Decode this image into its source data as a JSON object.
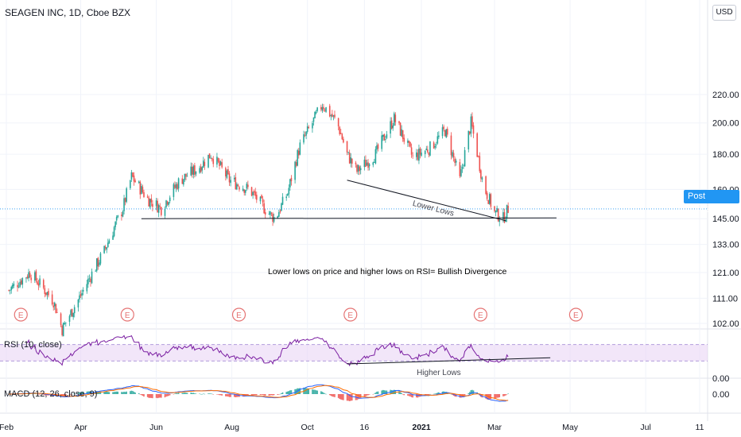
{
  "header": {
    "title": "SEAGEN INC, 1D, Cboe BZX",
    "currency_button": "USD"
  },
  "price_axis": {
    "ticks": [
      "220.00",
      "200.00",
      "180.00",
      "160.00",
      "145.00",
      "133.00",
      "121.00",
      "111.00",
      "102.00"
    ],
    "tick_values": [
      220,
      200,
      180,
      160,
      145,
      133,
      121,
      111,
      102
    ],
    "scale": "log"
  },
  "post_badge": {
    "label": "Post",
    "value": "149.82"
  },
  "annotations": {
    "note": "Lower lows on price and higher lows on RSI= Bullish Divergence",
    "lower_lows": "Lower Lows",
    "higher_lows": "Higher Lows",
    "earnings_marker": "E"
  },
  "rsi": {
    "label": "RSI (10, close)",
    "axis_label": "0.00",
    "bands": [
      30,
      70
    ]
  },
  "macd": {
    "label": "MACD (12, 26, close, 9)",
    "axis_label": "0.00"
  },
  "time_axis": {
    "labels": [
      "Feb",
      "Apr",
      "Jun",
      "Aug",
      "Oct",
      "16",
      "2021",
      "Mar",
      "May",
      "Jul",
      "11"
    ]
  },
  "colors": {
    "up": "#26a69a",
    "down": "#ef5350",
    "rsi_line": "#7b1fa2",
    "rsi_band": "#e9d5f5",
    "post": "#2196f3",
    "macd_line": "#2962ff",
    "signal_line": "#ff6d00",
    "earnings": "#e57373"
  },
  "chart_data": {
    "type": "candlestick",
    "title": "SEAGEN INC, 1D, Cboe BZX",
    "x_range": [
      "2020-02",
      "2021-03"
    ],
    "y_scale": "log",
    "price_path": [
      [
        "2020-02-03",
        114
      ],
      [
        "2020-02-20",
        121
      ],
      [
        "2020-03-10",
        110
      ],
      [
        "2020-03-17",
        100
      ],
      [
        "2020-04-01",
        112
      ],
      [
        "2020-04-20",
        130
      ],
      [
        "2020-05-05",
        150
      ],
      [
        "2020-05-12",
        167
      ],
      [
        "2020-05-25",
        155
      ],
      [
        "2020-06-05",
        150
      ],
      [
        "2020-06-20",
        165
      ],
      [
        "2020-07-05",
        172
      ],
      [
        "2020-07-15",
        180
      ],
      [
        "2020-07-30",
        165
      ],
      [
        "2020-08-15",
        160
      ],
      [
        "2020-08-30",
        148
      ],
      [
        "2020-09-05",
        145
      ],
      [
        "2020-09-15",
        158
      ],
      [
        "2020-09-25",
        185
      ],
      [
        "2020-10-05",
        200
      ],
      [
        "2020-10-13",
        213
      ],
      [
        "2020-10-25",
        200
      ],
      [
        "2020-11-02",
        180
      ],
      [
        "2020-11-10",
        170
      ],
      [
        "2020-11-25",
        180
      ],
      [
        "2020-12-10",
        203
      ],
      [
        "2020-12-25",
        178
      ],
      [
        "2021-01-08",
        184
      ],
      [
        "2021-01-20",
        195
      ],
      [
        "2021-02-01",
        165
      ],
      [
        "2021-02-10",
        200
      ],
      [
        "2021-02-20",
        162
      ],
      [
        "2021-03-01",
        148
      ],
      [
        "2021-03-08",
        145
      ],
      [
        "2021-03-12",
        150
      ]
    ],
    "last_post_price": 149.82,
    "support_line_price": 145,
    "rsi_divergence": "higher lows",
    "price_divergence": "lower lows"
  }
}
